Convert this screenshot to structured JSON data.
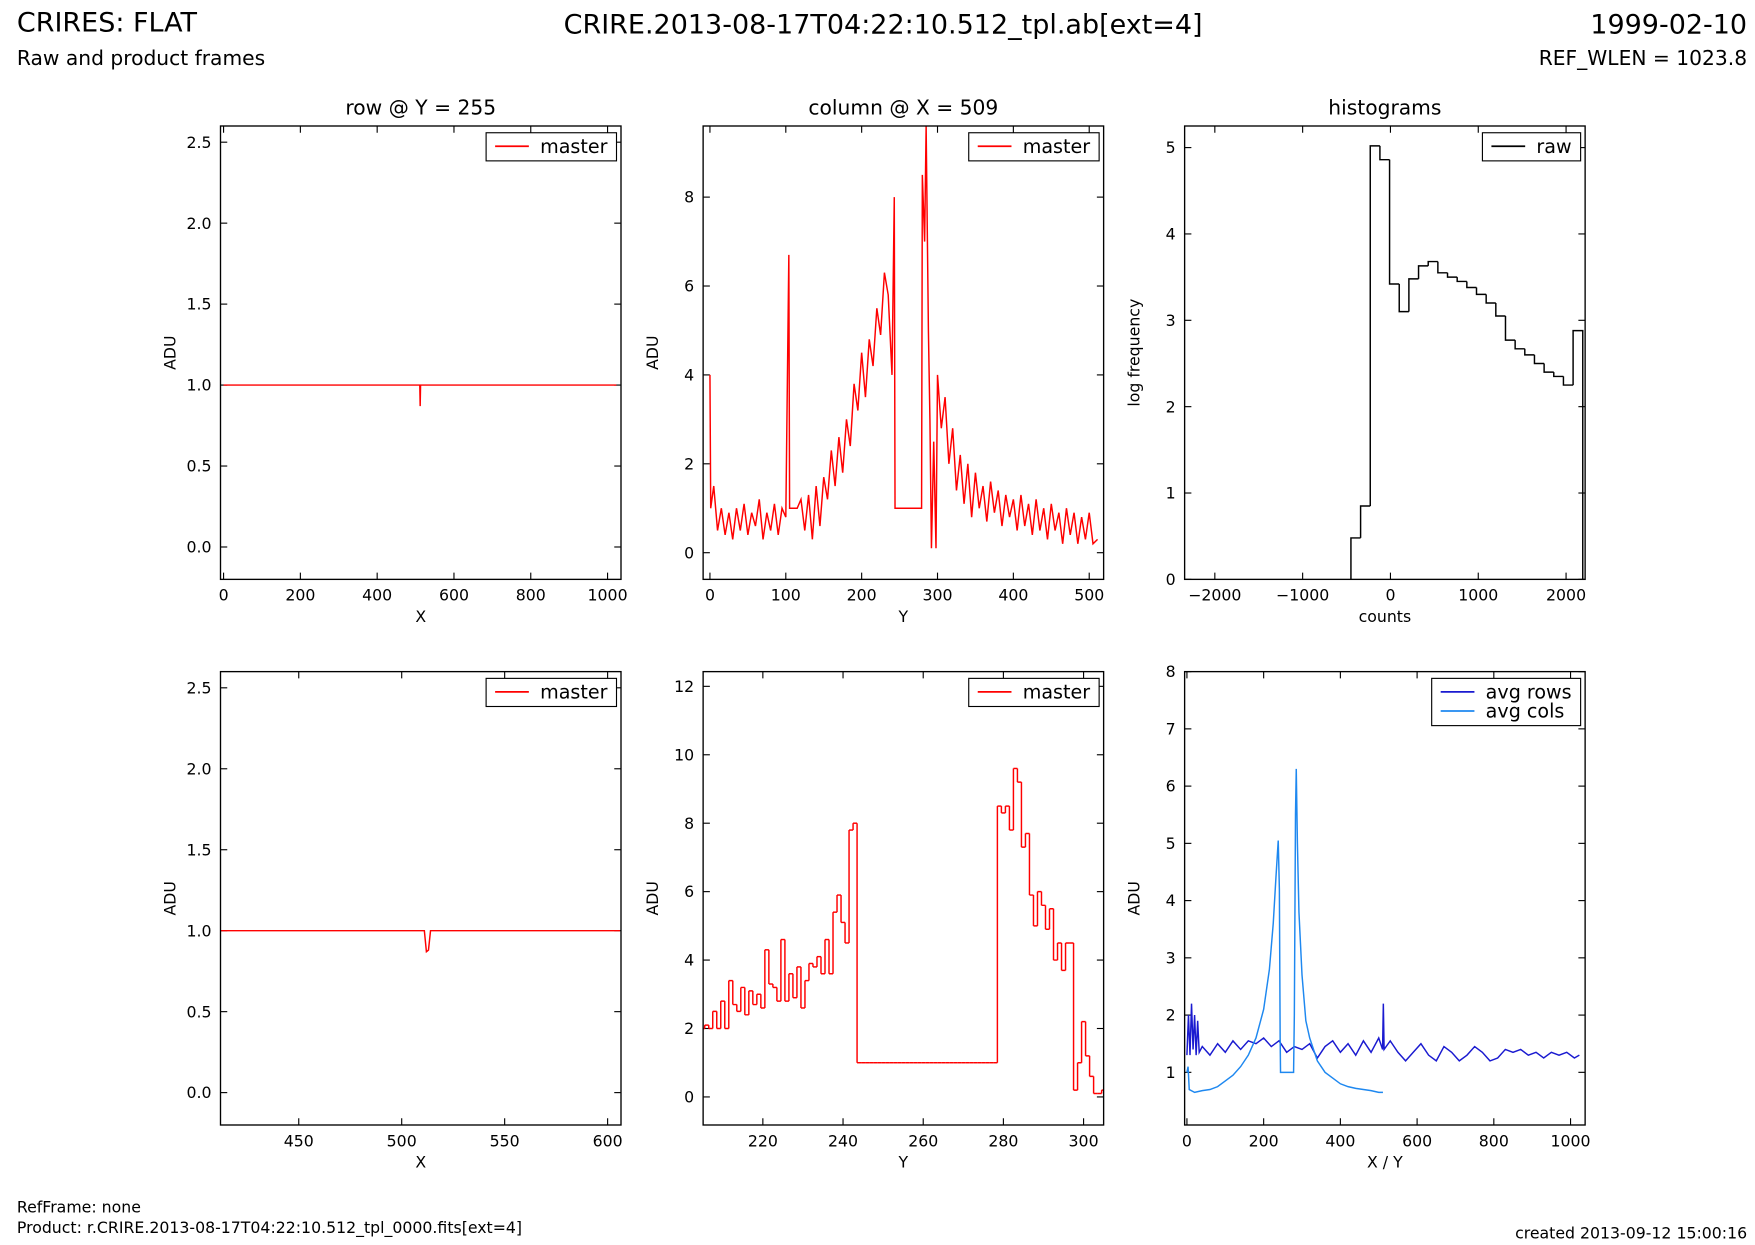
{
  "header": {
    "title": "CRIRES: FLAT",
    "subtitle": "Raw and product frames",
    "filename": "CRIRE.2013-08-17T04:22:10.512_tpl.ab[ext=4]",
    "date": "1999-02-10",
    "ref_wlen": "REF_WLEN = 1023.8"
  },
  "footer": {
    "refframe": "RefFrame: none",
    "product": "Product: r.CRIRE.2013-08-17T04:22:10.512_tpl_0000.fits[ext=4]",
    "created": "created 2013-09-12 15:00:16"
  },
  "chart_data": [
    {
      "type": "line",
      "title": "row @ Y = 255",
      "xlabel": "X",
      "ylabel": "ADU",
      "legend": "upper right",
      "xlim": [
        -8,
        1035
      ],
      "xticks": [
        0,
        200,
        400,
        600,
        800,
        1000
      ],
      "ylim": [
        -0.2,
        2.6
      ],
      "yticks": [
        {
          "value": 0,
          "label": "0.0"
        },
        0.5,
        {
          "value": 1,
          "label": "1.0"
        },
        1.5,
        {
          "value": 2,
          "label": "2.0"
        },
        2.5
      ],
      "series": [
        {
          "name": "master",
          "color": "#ff0000",
          "x": [
            0,
            511,
            512,
            513,
            1023
          ],
          "values": [
            1,
            1,
            0.87,
            1,
            1
          ]
        }
      ]
    },
    {
      "type": "line",
      "title": "column @ X = 509",
      "xlabel": "Y",
      "ylabel": "ADU",
      "legend": "upper right",
      "xlim": [
        -9,
        519
      ],
      "xticks": [
        0,
        100,
        200,
        300,
        400,
        500
      ],
      "ylim": [
        -0.6,
        9.6
      ],
      "yticks": [
        0,
        2,
        4,
        6,
        8
      ],
      "series": [
        {
          "name": "master",
          "color": "#ff0000",
          "x": [
            0,
            1,
            5,
            10,
            15,
            20,
            25,
            30,
            35,
            40,
            45,
            50,
            55,
            60,
            65,
            70,
            75,
            80,
            85,
            90,
            95,
            100,
            104,
            105,
            110,
            115,
            120,
            125,
            130,
            135,
            140,
            145,
            150,
            155,
            160,
            165,
            170,
            175,
            180,
            185,
            190,
            195,
            200,
            205,
            210,
            215,
            220,
            225,
            230,
            235,
            240,
            243,
            244,
            279,
            280,
            283,
            285,
            288,
            290,
            292,
            295,
            298,
            300,
            305,
            310,
            315,
            320,
            325,
            330,
            335,
            340,
            345,
            350,
            355,
            360,
            365,
            370,
            375,
            380,
            385,
            390,
            395,
            400,
            405,
            410,
            415,
            420,
            425,
            430,
            435,
            440,
            445,
            450,
            455,
            460,
            465,
            470,
            475,
            480,
            485,
            490,
            495,
            500,
            505,
            511
          ],
          "values": [
            4.0,
            1.0,
            1.5,
            0.5,
            1.0,
            0.4,
            0.9,
            0.3,
            1.0,
            0.5,
            1.1,
            0.4,
            0.9,
            0.6,
            1.2,
            0.3,
            0.9,
            0.5,
            1.1,
            0.4,
            1.0,
            0.8,
            6.7,
            1.0,
            1.0,
            1.0,
            1.2,
            0.5,
            1.3,
            0.3,
            1.5,
            0.6,
            1.7,
            1.2,
            2.3,
            1.5,
            2.6,
            1.8,
            3.0,
            2.4,
            3.8,
            3.2,
            4.5,
            3.5,
            4.8,
            4.2,
            5.5,
            4.9,
            6.3,
            5.8,
            4.0,
            8.0,
            1.0,
            1.0,
            8.5,
            7.0,
            9.6,
            5.0,
            3.0,
            0.1,
            2.5,
            0.1,
            4.0,
            2.8,
            3.5,
            2.0,
            2.8,
            1.4,
            2.2,
            1.1,
            2.0,
            0.8,
            1.8,
            1.0,
            1.5,
            0.7,
            1.6,
            0.9,
            1.4,
            0.6,
            1.3,
            0.8,
            1.2,
            0.5,
            1.3,
            0.6,
            1.1,
            0.4,
            1.2,
            0.5,
            1.0,
            0.3,
            1.1,
            0.5,
            0.9,
            0.2,
            1.0,
            0.4,
            0.9,
            0.2,
            0.8,
            0.3,
            0.9,
            0.2,
            0.3
          ]
        }
      ]
    },
    {
      "type": "histogram",
      "title": "histograms",
      "xlabel": "counts",
      "ylabel": "log frequency",
      "legend": "upper right",
      "xlim": [
        -2344,
        2217
      ],
      "xticks": [
        {
          "value": -2000,
          "label": "−2000"
        },
        {
          "value": -1000,
          "label": "−1000"
        },
        0,
        1000,
        2000
      ],
      "ylim": [
        0,
        5.25
      ],
      "yticks": [
        0,
        1,
        2,
        3,
        4,
        5
      ],
      "series": [
        {
          "name": "raw",
          "color": "#000000",
          "bins": [
            -450,
            -340,
            -230,
            -120,
            -10,
            100,
            210,
            320,
            430,
            540,
            650,
            760,
            870,
            980,
            1090,
            1200,
            1310,
            1420,
            1530,
            1640,
            1750,
            1860,
            1970,
            2080,
            2190
          ],
          "values": [
            0.48,
            0.85,
            5.02,
            4.86,
            3.42,
            3.1,
            3.48,
            3.63,
            3.68,
            3.55,
            3.5,
            3.45,
            3.38,
            3.3,
            3.2,
            3.05,
            2.77,
            2.67,
            2.6,
            2.5,
            2.4,
            2.35,
            2.25,
            2.88
          ]
        }
      ]
    },
    {
      "type": "line",
      "xlabel": "X",
      "ylabel": "ADU",
      "legend": "upper right",
      "xlim": [
        412,
        606.5
      ],
      "xticks": [
        450,
        500,
        550,
        600
      ],
      "ylim": [
        -0.2,
        2.6
      ],
      "yticks": [
        {
          "value": 0,
          "label": "0.0"
        },
        0.5,
        {
          "value": 1,
          "label": "1.0"
        },
        1.5,
        {
          "value": 2,
          "label": "2.0"
        },
        2.5
      ],
      "series": [
        {
          "name": "master",
          "color": "#ff0000",
          "x": [
            412,
            511,
            512,
            513,
            514,
            606
          ],
          "values": [
            1,
            1,
            0.87,
            0.88,
            1,
            1
          ]
        }
      ]
    },
    {
      "type": "step",
      "xlabel": "Y",
      "ylabel": "ADU",
      "legend": "upper right",
      "xlim": [
        205.1,
        305
      ],
      "xticks": [
        220,
        240,
        260,
        280,
        300
      ],
      "ylim": [
        -0.82,
        12.43
      ],
      "yticks": [
        0,
        2,
        4,
        6,
        8,
        10,
        12
      ],
      "series": [
        {
          "name": "master",
          "color": "#ff0000",
          "x": [
            205,
            206,
            207,
            208,
            209,
            210,
            211,
            212,
            213,
            214,
            215,
            216,
            217,
            218,
            219,
            220,
            221,
            222,
            223,
            224,
            225,
            226,
            227,
            228,
            229,
            230,
            231,
            232,
            233,
            234,
            235,
            236,
            237,
            238,
            239,
            240,
            241,
            242,
            243,
            244,
            245,
            246,
            247,
            248,
            249,
            250,
            251,
            252,
            253,
            254,
            255,
            256,
            257,
            258,
            259,
            260,
            261,
            262,
            263,
            264,
            265,
            266,
            267,
            268,
            269,
            270,
            271,
            272,
            273,
            274,
            275,
            276,
            277,
            278,
            279,
            280,
            281,
            282,
            283,
            284,
            285,
            286,
            287,
            288,
            289,
            290,
            291,
            292,
            293,
            294,
            295,
            296,
            297,
            298,
            299,
            300,
            301,
            302,
            303,
            304,
            305
          ],
          "values": [
            2.0,
            2.1,
            2.0,
            2.5,
            2.0,
            2.8,
            2.0,
            3.4,
            2.7,
            2.5,
            3.2,
            2.4,
            3.1,
            2.7,
            3.0,
            2.6,
            4.3,
            3.3,
            3.2,
            2.8,
            4.6,
            2.8,
            3.6,
            2.9,
            3.8,
            2.6,
            3.4,
            3.9,
            3.8,
            4.1,
            3.6,
            4.6,
            3.6,
            5.4,
            5.9,
            5.1,
            4.5,
            7.8,
            8.0,
            1,
            1,
            1,
            1,
            1,
            1,
            1,
            1,
            1,
            1,
            1,
            1,
            1,
            1,
            1,
            1,
            1,
            1,
            1,
            1,
            1,
            1,
            1,
            1,
            1,
            1,
            1,
            1,
            1,
            1,
            1,
            1,
            1,
            1,
            1,
            8.5,
            8.3,
            8.5,
            7.8,
            9.6,
            9.2,
            7.3,
            7.7,
            5.9,
            5.0,
            6.0,
            5.6,
            4.9,
            5.5,
            4.0,
            4.5,
            3.7,
            4.5,
            4.5,
            0.2,
            1.0,
            2.2,
            1.2,
            0.6,
            0.1,
            0.1,
            0.2
          ]
        }
      ]
    },
    {
      "type": "line",
      "xlabel": "X / Y",
      "ylabel": "ADU",
      "legend": "upper right",
      "xlim": [
        -6,
        1038
      ],
      "xticks": [
        0,
        200,
        400,
        600,
        800,
        1000
      ],
      "ylim": [
        0.08,
        8
      ],
      "yticks": [
        1,
        2,
        3,
        4,
        5,
        6,
        7,
        8
      ],
      "series": [
        {
          "name": "avg rows",
          "color": "#1a1ad0",
          "x": [
            0,
            4,
            8,
            12,
            16,
            20,
            24,
            28,
            32,
            40,
            60,
            80,
            100,
            120,
            140,
            160,
            180,
            200,
            220,
            240,
            260,
            280,
            300,
            320,
            340,
            360,
            380,
            400,
            420,
            440,
            460,
            480,
            500,
            510,
            512,
            514,
            530,
            550,
            570,
            590,
            610,
            630,
            650,
            670,
            690,
            710,
            730,
            750,
            770,
            790,
            810,
            830,
            850,
            870,
            890,
            910,
            930,
            950,
            970,
            990,
            1010,
            1023
          ],
          "values": [
            1.3,
            2.0,
            1.3,
            2.2,
            1.4,
            2.0,
            1.3,
            1.9,
            1.35,
            1.45,
            1.3,
            1.5,
            1.35,
            1.55,
            1.4,
            1.55,
            1.5,
            1.6,
            1.45,
            1.55,
            1.35,
            1.45,
            1.4,
            1.5,
            1.25,
            1.45,
            1.55,
            1.35,
            1.5,
            1.3,
            1.55,
            1.35,
            1.6,
            1.4,
            2.2,
            1.4,
            1.55,
            1.35,
            1.2,
            1.35,
            1.5,
            1.3,
            1.2,
            1.45,
            1.35,
            1.2,
            1.3,
            1.45,
            1.35,
            1.2,
            1.25,
            1.4,
            1.35,
            1.4,
            1.3,
            1.35,
            1.25,
            1.35,
            1.3,
            1.35,
            1.25,
            1.3
          ]
        },
        {
          "name": "avg cols",
          "color": "#1e88f0",
          "x": [
            0,
            3,
            6,
            20,
            40,
            60,
            80,
            100,
            120,
            140,
            160,
            180,
            200,
            215,
            225,
            232,
            238,
            241,
            243,
            244,
            278,
            280,
            283,
            285,
            288,
            292,
            300,
            310,
            320,
            340,
            360,
            380,
            400,
            420,
            440,
            460,
            480,
            500,
            511
          ],
          "values": [
            1.0,
            1.1,
            0.7,
            0.65,
            0.68,
            0.7,
            0.75,
            0.85,
            0.95,
            1.1,
            1.3,
            1.6,
            2.1,
            2.8,
            3.6,
            4.4,
            5.05,
            4.2,
            1.6,
            1.0,
            1.0,
            2.0,
            5.5,
            6.3,
            5.0,
            3.8,
            2.7,
            1.9,
            1.6,
            1.2,
            1.0,
            0.9,
            0.8,
            0.75,
            0.72,
            0.7,
            0.68,
            0.65,
            0.65
          ]
        }
      ]
    }
  ]
}
